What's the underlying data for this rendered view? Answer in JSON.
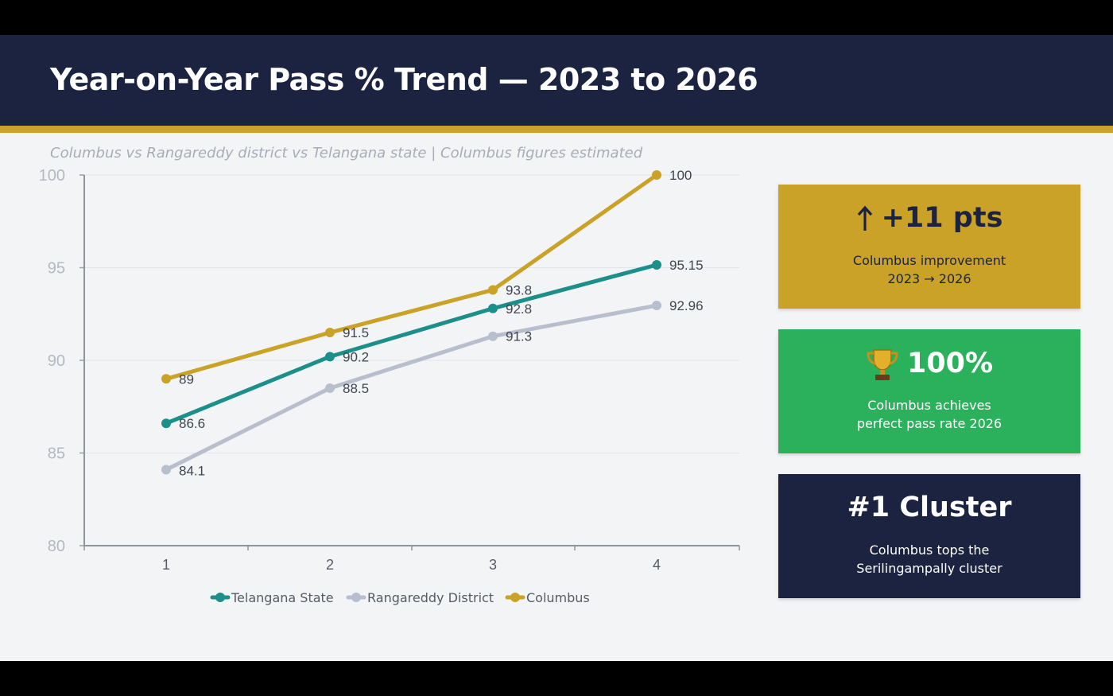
{
  "header": {
    "title": "Year-on-Year Pass % Trend — 2023 to 2026",
    "subtitle": "Columbus vs Rangareddy district vs Telangana state  |  Columbus figures estimated"
  },
  "cards": [
    {
      "value": "+11 pts",
      "icon": "arrow-up-icon",
      "description": "Columbus improvement\n2023 → 2026",
      "color": "#c9a227"
    },
    {
      "value": "100%",
      "icon": "trophy-icon",
      "description": "Columbus achieves\nperfect pass rate 2026",
      "color": "#2bb05b"
    },
    {
      "value": "#1 Cluster",
      "icon": "",
      "description": "Columbus tops the\nSerilingampally cluster",
      "color": "#1c2340"
    }
  ],
  "chart_data": {
    "type": "line",
    "x": [
      1,
      2,
      3,
      4
    ],
    "ylim": [
      80,
      100
    ],
    "yticks": [
      80,
      85,
      90,
      95,
      100
    ],
    "grid": true,
    "legend": "bottom",
    "series": [
      {
        "name": "Telangana State",
        "values": [
          86.6,
          90.2,
          92.8,
          95.15
        ],
        "labels": [
          "86.6",
          "90.2",
          "92.8",
          "95.15"
        ],
        "color": "#1d8f8a"
      },
      {
        "name": "Rangareddy District",
        "values": [
          84.1,
          88.5,
          91.3,
          92.96
        ],
        "labels": [
          "84.1",
          "88.5",
          "91.3",
          "92.96"
        ],
        "color": "#b8bfcc"
      },
      {
        "name": "Columbus",
        "values": [
          89,
          91.5,
          93.8,
          100
        ],
        "labels": [
          "89",
          "91.5",
          "93.8",
          "100"
        ],
        "color": "#c9a227"
      }
    ]
  }
}
